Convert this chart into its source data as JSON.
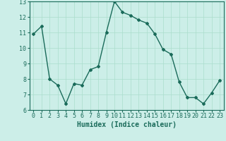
{
  "x": [
    0,
    1,
    2,
    3,
    4,
    5,
    6,
    7,
    8,
    9,
    10,
    11,
    12,
    13,
    14,
    15,
    16,
    17,
    18,
    19,
    20,
    21,
    22,
    23
  ],
  "y": [
    10.9,
    11.4,
    8.0,
    7.6,
    6.4,
    7.7,
    7.6,
    8.6,
    8.8,
    11.0,
    13.0,
    12.3,
    12.1,
    11.8,
    11.6,
    10.9,
    9.9,
    9.6,
    7.8,
    6.8,
    6.8,
    6.4,
    7.1,
    7.9
  ],
  "line_color": "#1a6b5a",
  "marker": "D",
  "marker_size": 2,
  "line_width": 1.0,
  "bg_color": "#cceee8",
  "grid_color": "#aaddcc",
  "xlabel": "Humidex (Indice chaleur)",
  "xlabel_fontsize": 7,
  "xlim": [
    -0.5,
    23.5
  ],
  "ylim": [
    6,
    13
  ],
  "yticks": [
    6,
    7,
    8,
    9,
    10,
    11,
    12,
    13
  ],
  "xticks": [
    0,
    1,
    2,
    3,
    4,
    5,
    6,
    7,
    8,
    9,
    10,
    11,
    12,
    13,
    14,
    15,
    16,
    17,
    18,
    19,
    20,
    21,
    22,
    23
  ],
  "tick_fontsize": 6
}
